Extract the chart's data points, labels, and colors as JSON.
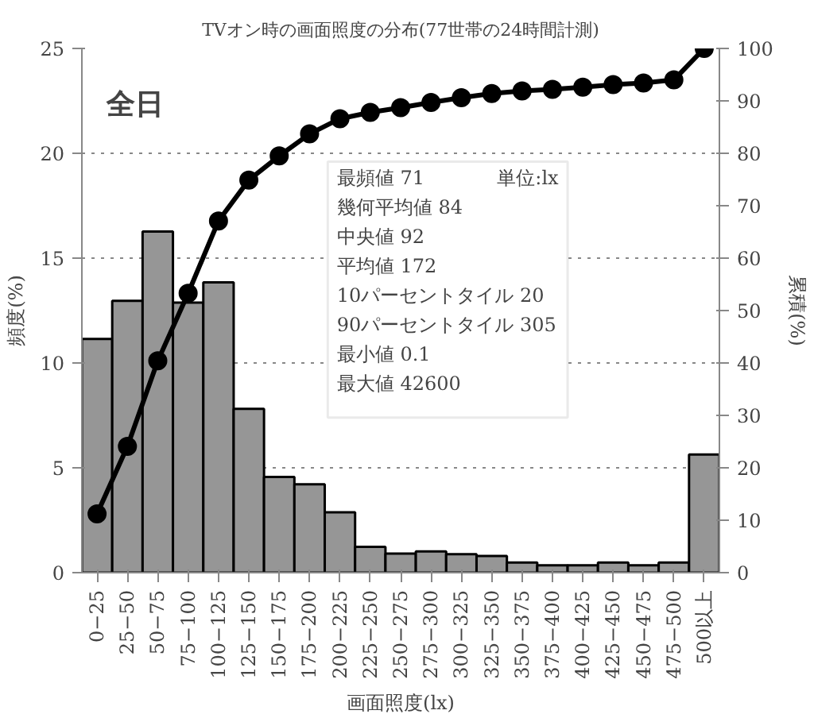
{
  "chart_data": {
    "type": "bar",
    "title": "TVオン時の画面照度の分布(77世帯の24時間計測)",
    "xlabel": "画面照度(lx)",
    "ylabel": "頻度(%)",
    "y2label": "累積(%)",
    "categories": [
      "0−25",
      "25−50",
      "50−75",
      "75−100",
      "100−125",
      "125−150",
      "150−175",
      "175−200",
      "200−225",
      "225−250",
      "250−275",
      "275−300",
      "300−325",
      "325−350",
      "350−375",
      "375−400",
      "400−425",
      "425−450",
      "450−475",
      "475−500",
      "500以上"
    ],
    "series": [
      {
        "color": "#969696",
        "values": [
          11.15,
          12.96,
          16.27,
          12.88,
          13.84,
          7.81,
          4.56,
          4.21,
          2.88,
          1.23,
          0.91,
          1.01,
          0.88,
          0.8,
          0.48,
          0.35,
          0.35,
          0.48,
          0.35,
          0.48,
          5.63
        ]
      },
      {
        "type": "line",
        "axis": "y2",
        "color": "#000000",
        "marker": "circle",
        "values": [
          11.2,
          24.1,
          40.4,
          53.3,
          67.1,
          74.9,
          79.5,
          83.7,
          86.6,
          87.8,
          88.7,
          89.7,
          90.6,
          91.4,
          91.9,
          92.2,
          92.6,
          93.1,
          93.4,
          94,
          100
        ]
      }
    ],
    "ylim": [
      0,
      25
    ],
    "yticks": [
      0,
      5,
      10,
      15,
      20,
      25
    ],
    "y2lim": [
      0,
      100
    ],
    "y2ticks": [
      0,
      10,
      20,
      30,
      40,
      50,
      60,
      70,
      80,
      90,
      100
    ],
    "grid": "y",
    "annotations": [
      "全日",
      "単位:lx",
      "最頻値 71",
      "幾何平均値 84",
      "中央値 92",
      "平均値 172",
      "10パーセントタイル 20",
      "90パーセントタイル 305",
      "最小値 0.1",
      "最大値 42600"
    ]
  }
}
